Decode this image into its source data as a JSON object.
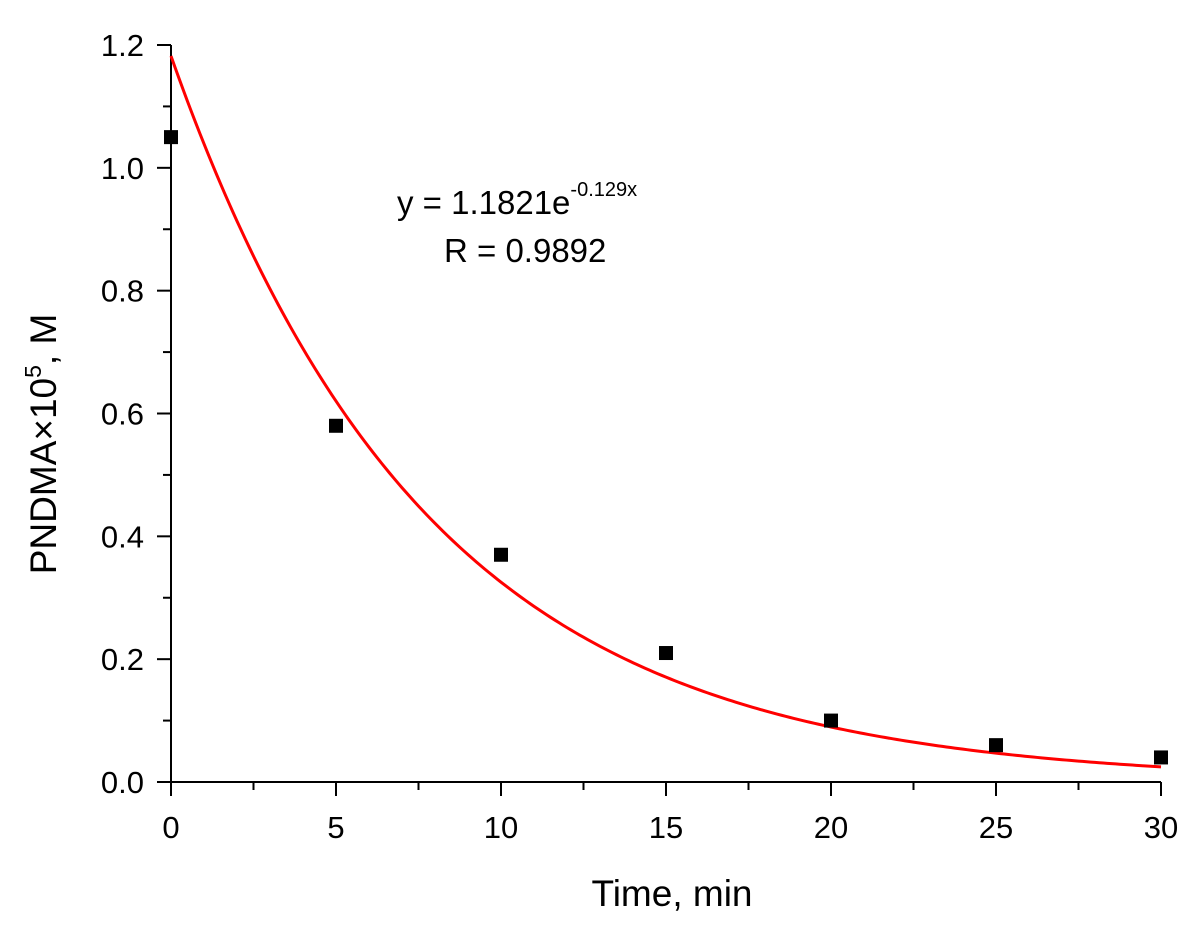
{
  "chart_data": {
    "type": "scatter",
    "title": "",
    "xlabel": "Time, min",
    "ylabel_main": "PNDMA×10",
    "ylabel_sup": "5",
    "ylabel_tail": ", M",
    "xlim": [
      0,
      30
    ],
    "ylim": [
      0,
      1.2
    ],
    "grid": false,
    "x_ticks": [
      0,
      5,
      10,
      15,
      20,
      25,
      30
    ],
    "x_tick_labels": [
      "0",
      "5",
      "10",
      "15",
      "20",
      "25",
      "30"
    ],
    "y_ticks": [
      0,
      0.2,
      0.4,
      0.6,
      0.8,
      1.0,
      1.2
    ],
    "y_tick_labels": [
      "0.0",
      "0.2",
      "0.4",
      "0.6",
      "0.8",
      "1.0",
      "1.2"
    ],
    "series": [
      {
        "x": [
          0,
          5,
          10,
          15,
          20,
          25,
          30
        ],
        "y": [
          1.05,
          0.58,
          0.37,
          0.21,
          0.1,
          0.06,
          0.04
        ],
        "marker": "square",
        "color": "#000000"
      }
    ],
    "fit": {
      "a": 1.1821,
      "k": -0.129,
      "color": "#ff0000"
    },
    "annotation": {
      "eq_main": "y = 1.1821e",
      "eq_exp": "-0.129x",
      "r_text": "R = 0.9892"
    }
  }
}
